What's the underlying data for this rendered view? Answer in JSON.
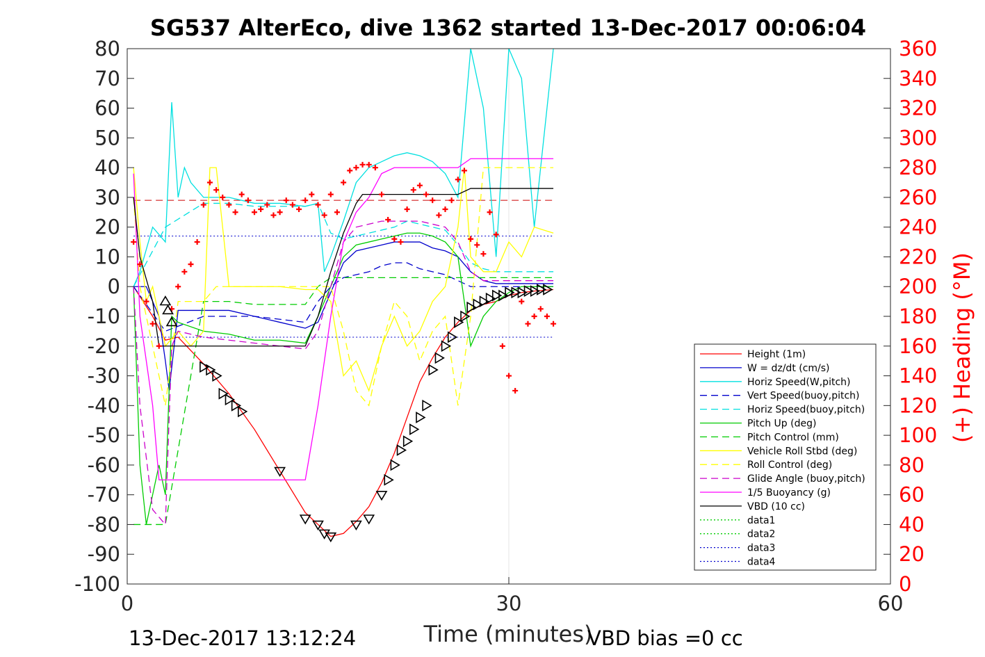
{
  "chart_data": {
    "type": "line",
    "title": "SG537 AlterEco, dive 1362 started 13-Dec-2017 00:06:04",
    "xlabel": "Time (minutes)",
    "ylabel_right": "(+) Heading (°M)",
    "xlim": [
      0,
      60
    ],
    "ylim": [
      -100,
      80
    ],
    "ylim_right": [
      0,
      360
    ],
    "x_ticks": [
      "0",
      "30",
      "60"
    ],
    "y_ticks": [
      "80",
      "70",
      "60",
      "50",
      "40",
      "30",
      "20",
      "10",
      "0",
      "-10",
      "-20",
      "-30",
      "-40",
      "-50",
      "-60",
      "-70",
      "-80",
      "-90",
      "-100"
    ],
    "y_ticks_right": [
      "360",
      "340",
      "320",
      "300",
      "280",
      "260",
      "240",
      "220",
      "200",
      "180",
      "160",
      "140",
      "120",
      "100",
      "80",
      "60",
      "40",
      "20",
      "0"
    ],
    "grid": "x-only",
    "legend_position": "lower-right",
    "footer_left": "13-Dec-2017 13:12:24",
    "footer_right": "VBD bias =0 cc",
    "colors": {
      "height": "#ff0000",
      "w": "#0000cc",
      "horiz_w": "#00e0e0",
      "vert_buoy": "#0000cc",
      "horiz_buoy": "#00e0e0",
      "pitch_up": "#00cc00",
      "pitch_ctl": "#00cc00",
      "roll": "#ffff00",
      "roll_ctl": "#ffff00",
      "glide": "#cc00cc",
      "buoy": "#ff00ff",
      "vbd": "#000000",
      "heading": "#ff0000"
    },
    "legend": [
      {
        "name": "Height (1m)",
        "color": "#ff0000",
        "dash": ""
      },
      {
        "name": "W = dz/dt (cm/s)",
        "color": "#0000cc",
        "dash": ""
      },
      {
        "name": "Horiz Speed(W,pitch)",
        "color": "#00e0e0",
        "dash": ""
      },
      {
        "name": "Vert Speed(buoy,pitch)",
        "color": "#0000cc",
        "dash": "10,6"
      },
      {
        "name": "Horiz Speed(buoy,pitch)",
        "color": "#00e0e0",
        "dash": "10,6"
      },
      {
        "name": "Pitch Up (deg)",
        "color": "#00cc00",
        "dash": ""
      },
      {
        "name": "Pitch Control (mm)",
        "color": "#00cc00",
        "dash": "10,6"
      },
      {
        "name": "Vehicle Roll Stbd (deg)",
        "color": "#ffff00",
        "dash": ""
      },
      {
        "name": "Roll Control (deg)",
        "color": "#ffff00",
        "dash": "10,6"
      },
      {
        "name": "Glide Angle (buoy,pitch)",
        "color": "#cc00cc",
        "dash": "10,6"
      },
      {
        "name": "1/5 Buoyancy (g)",
        "color": "#ff00ff",
        "dash": ""
      },
      {
        "name": "VBD (10 cc)",
        "color": "#000000",
        "dash": ""
      },
      {
        "name": "data1",
        "color": "#00cc00",
        "dash": "2,3"
      },
      {
        "name": "data2",
        "color": "#00cc00",
        "dash": "2,3"
      },
      {
        "name": "data3",
        "color": "#0000cc",
        "dash": "2,3"
      },
      {
        "name": "data4",
        "color": "#0000cc",
        "dash": "2,3"
      }
    ],
    "series": [
      {
        "key": "height",
        "x": [
          0.5,
          2,
          3,
          4,
          6,
          8,
          10,
          12,
          14,
          15,
          16,
          17,
          18,
          19,
          20,
          21,
          22,
          23,
          24,
          25,
          26,
          27,
          28,
          29,
          30,
          31,
          32,
          33.5
        ],
        "y": [
          0,
          -10,
          -18,
          -17,
          -26,
          -36,
          -48,
          -62,
          -76,
          -80,
          -84,
          -83,
          -79,
          -74,
          -66,
          -56,
          -44,
          -32,
          -24,
          -17,
          -12,
          -8,
          -6,
          -5,
          -3,
          -2,
          -1.5,
          -1
        ]
      },
      {
        "key": "w",
        "x": [
          0.5,
          1.5,
          2.5,
          3,
          3.3,
          4,
          6,
          8,
          10,
          12,
          14,
          15,
          16,
          17,
          18,
          19,
          20,
          21,
          22,
          23,
          24,
          25,
          26,
          27,
          28,
          29,
          30,
          31,
          32,
          33.5
        ],
        "y": [
          0,
          0,
          -10,
          -25,
          -35,
          -8,
          -8,
          -8,
          -10,
          -12,
          -14,
          -12,
          -2,
          8,
          12,
          13,
          14,
          15,
          15,
          15,
          13,
          12,
          10,
          5,
          2,
          1,
          1,
          1,
          1,
          1
        ]
      },
      {
        "key": "horiz_w",
        "x": [
          0.5,
          1,
          2,
          3,
          3.5,
          4,
          4.5,
          5,
          6,
          8,
          10,
          12,
          14,
          15,
          15.5,
          16,
          17,
          18,
          19,
          20,
          21,
          22,
          23,
          24,
          25,
          26,
          27,
          28,
          29,
          30,
          31,
          32,
          33.5
        ],
        "y": [
          0,
          5,
          20,
          15,
          62,
          30,
          40,
          35,
          30,
          30,
          28,
          28,
          27,
          28,
          5,
          10,
          22,
          35,
          40,
          42,
          44,
          45,
          44,
          42,
          38,
          30,
          80,
          60,
          10,
          80,
          70,
          20,
          80
        ]
      },
      {
        "key": "vert_buoy",
        "x": [
          0.5,
          3,
          6,
          8,
          10,
          12,
          14,
          15,
          16,
          17,
          18,
          19,
          20,
          21,
          22,
          23,
          24,
          25,
          26,
          27,
          28,
          29,
          30,
          31,
          32,
          33.5
        ],
        "y": [
          0,
          -15,
          -10,
          -10,
          -10,
          -11,
          -12,
          -5,
          0,
          3,
          4,
          5,
          7,
          8,
          8,
          6,
          5,
          4,
          2,
          0,
          0,
          0,
          0,
          0,
          0,
          0
        ]
      },
      {
        "key": "horiz_buoy",
        "x": [
          0.5,
          3,
          6,
          8,
          10,
          12,
          14,
          15,
          16,
          17,
          18,
          19,
          20,
          21,
          22,
          23,
          24,
          25,
          26,
          27,
          28,
          29,
          30,
          31,
          32,
          33.5
        ],
        "y": [
          0,
          20,
          28,
          28,
          27,
          27,
          27,
          28,
          18,
          16,
          17,
          18,
          19,
          20,
          22,
          21,
          20,
          19,
          14,
          8,
          6,
          5,
          5,
          5,
          5,
          5
        ]
      },
      {
        "key": "pitch_up",
        "x": [
          0.5,
          1,
          1.5,
          2,
          2.5,
          3,
          3.5,
          4,
          6,
          8,
          10,
          12,
          14,
          15,
          16,
          17,
          18,
          19,
          20,
          21,
          22,
          23,
          24,
          25,
          26,
          27,
          28,
          29,
          30,
          31,
          32,
          33.5
        ],
        "y": [
          0,
          -60,
          -80,
          -70,
          -60,
          -70,
          -10,
          -12,
          -15,
          -16,
          -18,
          -18,
          -19,
          -10,
          0,
          10,
          14,
          15,
          16,
          17,
          18,
          18,
          17,
          15,
          10,
          -20,
          -10,
          -5,
          -2,
          0,
          0,
          0
        ]
      },
      {
        "key": "pitch_ctl",
        "x": [
          0.5,
          3,
          6,
          8,
          10,
          12,
          14,
          15,
          16,
          18,
          20,
          22,
          24,
          26,
          28,
          30,
          33.5
        ],
        "y": [
          -80,
          -80,
          -5,
          -5,
          -6,
          -6,
          -6,
          0,
          3,
          3,
          3,
          3,
          3,
          3,
          3,
          3,
          3
        ]
      },
      {
        "key": "roll",
        "x": [
          0.5,
          1,
          1.5,
          2,
          3,
          4,
          5,
          6,
          6.5,
          7,
          8,
          10,
          12,
          14,
          15,
          16,
          17,
          18,
          19,
          20,
          21,
          22,
          23,
          24,
          25,
          26,
          26.5,
          27,
          28,
          29,
          30,
          31,
          32,
          33.5
        ],
        "y": [
          40,
          15,
          -5,
          0,
          -20,
          -15,
          -20,
          -15,
          40,
          40,
          0,
          0,
          0,
          -1,
          -1,
          -5,
          -30,
          -25,
          -35,
          -20,
          -10,
          -20,
          -15,
          -5,
          0,
          20,
          40,
          10,
          5,
          5,
          15,
          10,
          20,
          18
        ]
      },
      {
        "key": "roll_ctl",
        "x": [
          0.5,
          1,
          2,
          3,
          4,
          6,
          7,
          8,
          10,
          12,
          14,
          16,
          17,
          18,
          19,
          20,
          21,
          22,
          23,
          24,
          25,
          26,
          27,
          28,
          29,
          30,
          31,
          32,
          33.5
        ],
        "y": [
          30,
          0,
          -20,
          -40,
          -5,
          -5,
          0,
          0,
          0,
          0,
          0,
          0,
          -15,
          -35,
          -40,
          -20,
          -5,
          -10,
          -25,
          -15,
          -10,
          -40,
          -10,
          40,
          40,
          40,
          40,
          40,
          40
        ]
      },
      {
        "key": "glide",
        "x": [
          0.5,
          1,
          2,
          3,
          3.5,
          4,
          6,
          8,
          10,
          12,
          14,
          15,
          16,
          17,
          18,
          19,
          20,
          21,
          22,
          23,
          24,
          25,
          26,
          27,
          28,
          29,
          30,
          31,
          32,
          33.5
        ],
        "y": [
          0,
          -40,
          -75,
          -80,
          -20,
          -15,
          -17,
          -18,
          -19,
          -20,
          -21,
          -15,
          0,
          15,
          20,
          21,
          22,
          22,
          22,
          22,
          21,
          20,
          15,
          5,
          2,
          2,
          2,
          2,
          2,
          2
        ]
      },
      {
        "key": "buoy",
        "x": [
          0.5,
          1,
          2,
          2.5,
          3,
          14,
          15,
          16,
          17,
          18,
          19,
          20,
          21,
          22,
          23,
          24,
          25,
          26,
          27,
          28,
          29,
          30,
          31,
          32,
          33.5
        ],
        "y": [
          38,
          -10,
          -40,
          -65,
          -65,
          -65,
          -40,
          -10,
          15,
          25,
          30,
          38,
          40,
          40,
          40,
          40,
          40,
          40,
          43,
          43,
          43,
          43,
          43,
          43,
          43
        ]
      },
      {
        "key": "vbd",
        "x": [
          0.5,
          1,
          2,
          2.5,
          3,
          14,
          15,
          16,
          17,
          18,
          18.5,
          19,
          20,
          21,
          22,
          23,
          24,
          25,
          26,
          27,
          28,
          29,
          30,
          31,
          32,
          33.5
        ],
        "y": [
          30,
          10,
          -5,
          -20,
          -20,
          -20,
          -10,
          5,
          18,
          28,
          31,
          31,
          31,
          31,
          31,
          31,
          31,
          31,
          31,
          33,
          33,
          33,
          33,
          33,
          33,
          33
        ]
      },
      {
        "key": "heading",
        "x": [
          0.5,
          1,
          1.5,
          2,
          2.5,
          3.5,
          4,
          4.5,
          5,
          5.5,
          6,
          6.5,
          7,
          7.5,
          8,
          8.5,
          9,
          9.5,
          10,
          10.5,
          11,
          11.5,
          12,
          12.5,
          13,
          13.5,
          14,
          14.5,
          15,
          15.5,
          16,
          16.5,
          17,
          17.5,
          18,
          18.5,
          19,
          19.5,
          20,
          20.5,
          21,
          21.5,
          22,
          22.5,
          23,
          23.5,
          24,
          24.5,
          25,
          25.5,
          26,
          26.5,
          27,
          27.5,
          28,
          28.5,
          29,
          29.5,
          30,
          30.5,
          31,
          31.5,
          32,
          32.5,
          33,
          33.5
        ],
        "y": [
          230,
          215,
          190,
          175,
          160,
          185,
          200,
          210,
          215,
          230,
          255,
          270,
          265,
          260,
          255,
          250,
          262,
          258,
          250,
          252,
          255,
          248,
          250,
          258,
          255,
          252,
          258,
          262,
          255,
          248,
          262,
          250,
          270,
          278,
          280,
          282,
          282,
          280,
          262,
          245,
          232,
          230,
          252,
          265,
          268,
          262,
          258,
          248,
          252,
          258,
          272,
          278,
          232,
          228,
          222,
          250,
          235,
          160,
          140,
          130,
          190,
          175,
          180,
          185,
          180,
          175
        ]
      }
    ],
    "markers": {
      "down": {
        "x": [
          12,
          14,
          15,
          15.5,
          16,
          18,
          19,
          20
        ],
        "y": [
          -62,
          -78,
          -80,
          -83,
          -84,
          -80,
          -78,
          -70
        ]
      },
      "down2": {
        "x": [
          6,
          6.5,
          7,
          7.5,
          8,
          8.5,
          9,
          20.5,
          21,
          21.5,
          22,
          22.5,
          23,
          23.5,
          24,
          24.5,
          25,
          25.5,
          26,
          26.5,
          27,
          27.5,
          28,
          28.5,
          29,
          29.5,
          30,
          30.5,
          31,
          31.5,
          32,
          32.5,
          33
        ],
        "y": [
          -27,
          -28,
          -30,
          -36,
          -38,
          -40,
          -42,
          -65,
          -60,
          -55,
          -52,
          -48,
          -44,
          -40,
          -28,
          -24,
          -20,
          -17,
          -12,
          -10,
          -7,
          -6,
          -5,
          -4,
          -3,
          -3,
          -2,
          -2,
          -2,
          -1.5,
          -1.5,
          -1,
          -1
        ]
      },
      "up": {
        "x": [
          3,
          3.2,
          3.5
        ],
        "y": [
          -5,
          -8,
          -12
        ]
      }
    }
  }
}
